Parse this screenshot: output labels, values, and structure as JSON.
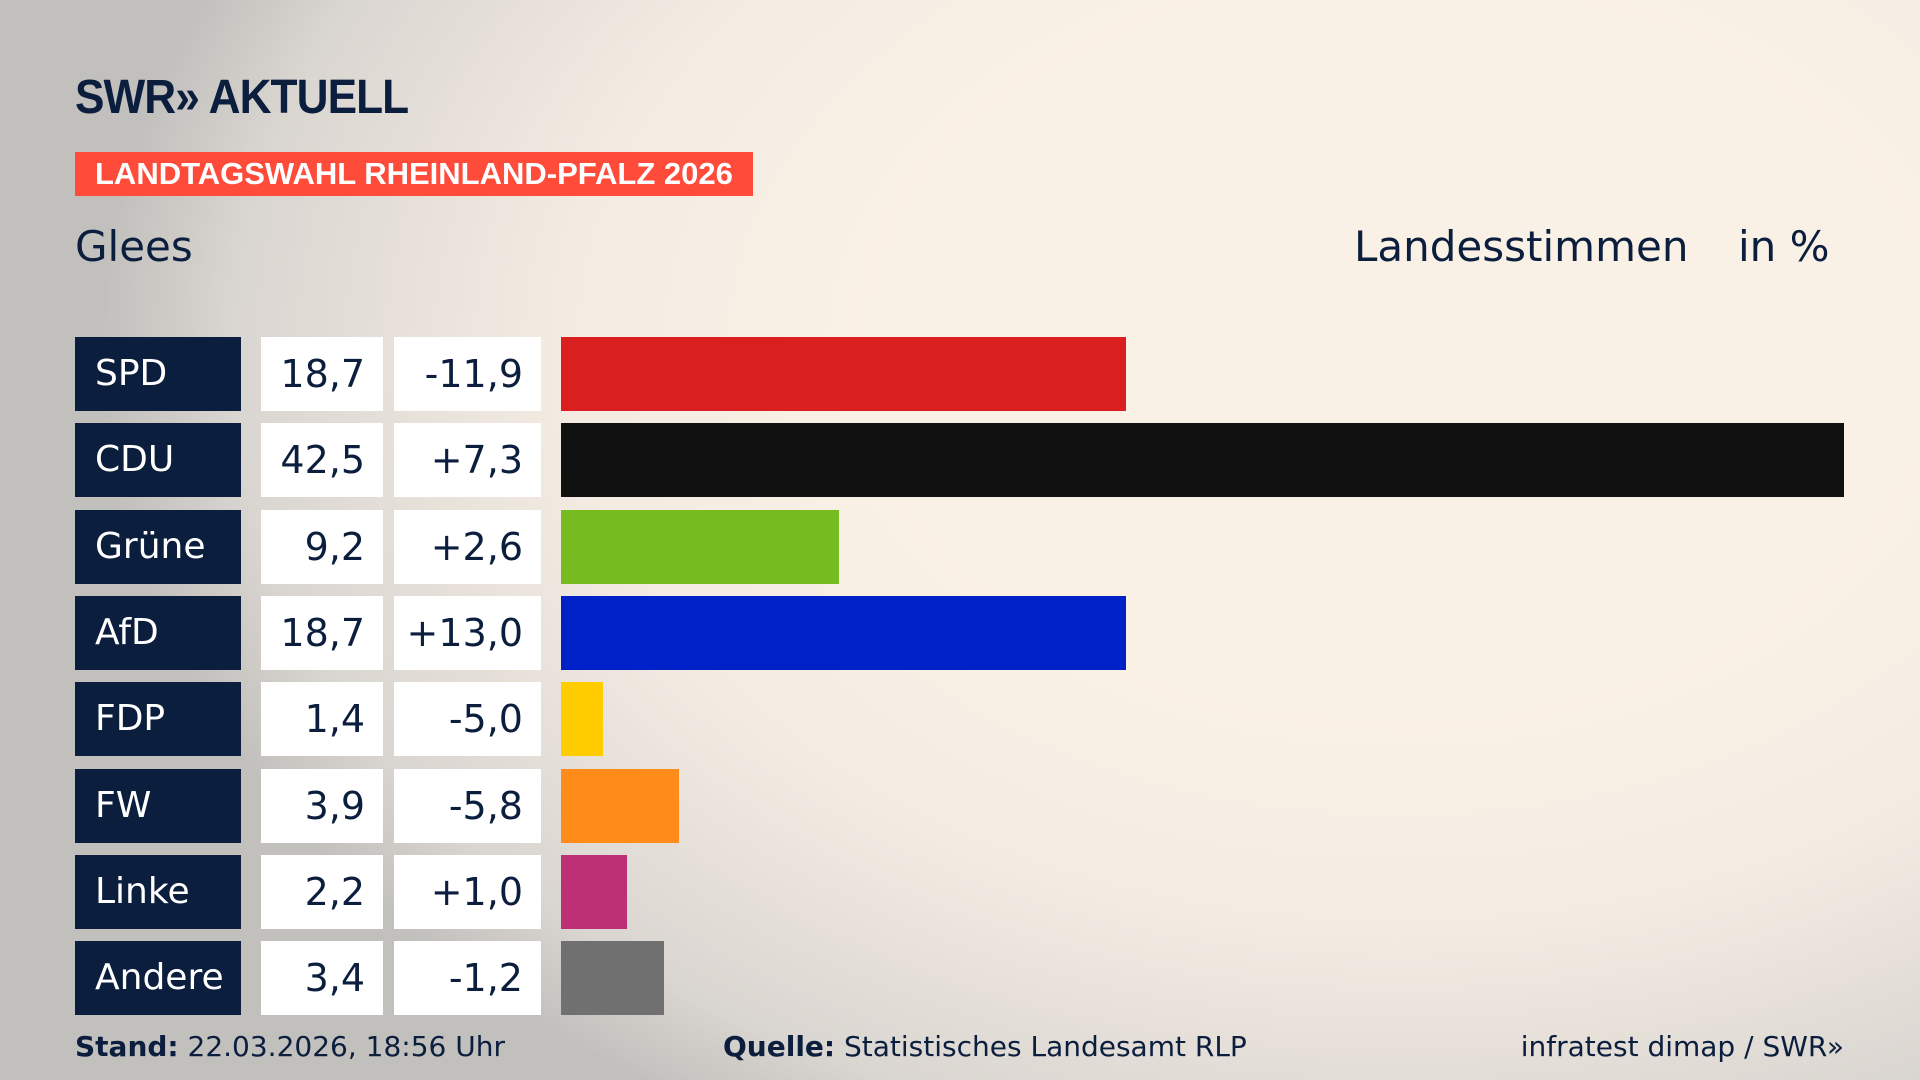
{
  "header": {
    "logo": "SWR» AKTUELL",
    "banner": "LANDTAGSWAHL RHEINLAND-PFALZ 2026",
    "place": "Glees",
    "measure": "Landesstimmen",
    "unit": "in %"
  },
  "chart_data": {
    "type": "bar",
    "orientation": "horizontal",
    "categories": [
      "SPD",
      "CDU",
      "Grüne",
      "AfD",
      "FDP",
      "FW",
      "Linke",
      "Andere"
    ],
    "values": [
      18.7,
      42.5,
      9.2,
      18.7,
      1.4,
      3.9,
      2.2,
      3.4
    ],
    "value_labels": [
      "18,7",
      "42,5",
      "9,2",
      "18,7",
      "1,4",
      "3,9",
      "2,2",
      "3,4"
    ],
    "diff_labels": [
      "-11,9",
      "+7,3",
      "+2,6",
      "+13,0",
      "-5,0",
      "-5,8",
      "+1,0",
      "-1,2"
    ],
    "diffs": [
      -11.9,
      7.3,
      2.6,
      13.0,
      -5.0,
      -5.8,
      1.0,
      -1.2
    ],
    "colors": [
      "#d91f20",
      "#111111",
      "#76bc21",
      "#0021c8",
      "#ffcc00",
      "#ff8c1a",
      "#be3075",
      "#707070"
    ],
    "xlim": [
      0,
      42.5
    ],
    "grid": false
  },
  "footer": {
    "stand_label": "Stand:",
    "stand_value": " 22.03.2026, 18:56 Uhr",
    "source_label": "Quelle:",
    "source_value": " Statistisches Landesamt RLP",
    "credit": "infratest dimap / SWR»"
  }
}
